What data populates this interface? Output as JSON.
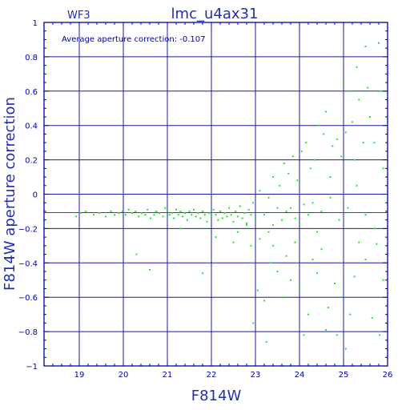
{
  "header": {
    "chip_label": "WF3",
    "title": "lmc_u4ax31"
  },
  "annotation": "Average aperture correction: -0.107",
  "colors": {
    "axis": "#0000a8",
    "grid": "#1a1aa0",
    "points": "#22e622",
    "reference_line": "#b02020",
    "text": "#1f2fb0"
  },
  "chart_data": {
    "type": "scatter",
    "xlabel": "F814W",
    "ylabel": "F814W aperture correction",
    "xlim": [
      18.2,
      26
    ],
    "ylim": [
      -1,
      1
    ],
    "x_ticks": [
      19,
      20,
      21,
      22,
      23,
      24,
      25,
      26
    ],
    "y_ticks": [
      -1,
      -0.8,
      -0.6,
      -0.4,
      -0.2,
      0,
      0.2,
      0.4,
      0.6,
      0.8,
      1
    ],
    "x_tick_labels": [
      "19",
      "20",
      "21",
      "22",
      "23",
      "24",
      "25",
      "26"
    ],
    "y_tick_labels": [
      "−1",
      "−0.8",
      "−0.6",
      "−0.4",
      "−0.2",
      "0",
      "0.2",
      "0.4",
      "0.6",
      "0.8",
      "1"
    ],
    "grid": true,
    "reference_line_y": -0.107,
    "series": [
      {
        "points": [
          [
            18.93,
            -0.13
          ],
          [
            19.02,
            -0.11
          ],
          [
            19.15,
            -0.1
          ],
          [
            19.33,
            -0.12
          ],
          [
            19.45,
            -0.11
          ],
          [
            19.6,
            -0.13
          ],
          [
            19.72,
            -0.1
          ],
          [
            19.8,
            -0.12
          ],
          [
            19.9,
            -0.11
          ],
          [
            19.98,
            -0.1
          ],
          [
            20.05,
            -0.12
          ],
          [
            20.12,
            -0.09
          ],
          [
            20.2,
            -0.11
          ],
          [
            20.28,
            -0.1
          ],
          [
            20.35,
            -0.13
          ],
          [
            20.42,
            -0.11
          ],
          [
            20.5,
            -0.12
          ],
          [
            20.55,
            -0.09
          ],
          [
            20.62,
            -0.14
          ],
          [
            20.7,
            -0.12
          ],
          [
            20.75,
            -0.1
          ],
          [
            20.82,
            -0.11
          ],
          [
            20.9,
            -0.13
          ],
          [
            20.95,
            -0.08
          ],
          [
            21.0,
            -0.1
          ],
          [
            21.05,
            -0.12
          ],
          [
            21.1,
            -0.11
          ],
          [
            21.15,
            -0.14
          ],
          [
            21.2,
            -0.09
          ],
          [
            21.25,
            -0.12
          ],
          [
            21.3,
            -0.1
          ],
          [
            21.35,
            -0.13
          ],
          [
            21.4,
            -0.11
          ],
          [
            21.45,
            -0.15
          ],
          [
            21.5,
            -0.1
          ],
          [
            21.55,
            -0.12
          ],
          [
            21.6,
            -0.09
          ],
          [
            21.65,
            -0.13
          ],
          [
            21.7,
            -0.11
          ],
          [
            21.75,
            -0.14
          ],
          [
            21.8,
            -0.1
          ],
          [
            21.85,
            -0.12
          ],
          [
            21.9,
            -0.16
          ],
          [
            21.95,
            -0.11
          ],
          [
            22.0,
            -0.13
          ],
          [
            22.05,
            -0.09
          ],
          [
            22.1,
            -0.12
          ],
          [
            22.15,
            -0.15
          ],
          [
            22.2,
            -0.1
          ],
          [
            22.25,
            -0.14
          ],
          [
            22.3,
            -0.11
          ],
          [
            22.35,
            -0.13
          ],
          [
            22.4,
            -0.08
          ],
          [
            22.45,
            -0.12
          ],
          [
            22.5,
            -0.16
          ],
          [
            22.55,
            -0.1
          ],
          [
            22.6,
            -0.13
          ],
          [
            22.65,
            -0.07
          ],
          [
            22.7,
            -0.14
          ],
          [
            22.75,
            -0.11
          ],
          [
            22.8,
            -0.17
          ],
          [
            22.85,
            -0.09
          ],
          [
            22.9,
            -0.12
          ],
          [
            22.95,
            -0.05
          ],
          [
            23.0,
            -0.15
          ],
          [
            20.3,
            -0.35
          ],
          [
            20.6,
            -0.44
          ],
          [
            21.3,
            -0.2
          ],
          [
            21.8,
            -0.46
          ],
          [
            22.1,
            -0.25
          ],
          [
            22.5,
            -0.28
          ],
          [
            22.9,
            -0.3
          ],
          [
            22.95,
            -0.75
          ],
          [
            23.25,
            -0.86
          ],
          [
            23.05,
            -0.56
          ],
          [
            23.2,
            -0.62
          ],
          [
            23.35,
            -0.4
          ],
          [
            23.4,
            -0.3
          ],
          [
            23.5,
            -0.45
          ],
          [
            23.6,
            -0.6
          ],
          [
            23.7,
            -0.36
          ],
          [
            23.8,
            -0.5
          ],
          [
            23.9,
            -0.28
          ],
          [
            24.0,
            -0.55
          ],
          [
            24.1,
            -0.82
          ],
          [
            24.2,
            -0.7
          ],
          [
            24.3,
            -0.38
          ],
          [
            24.4,
            -0.46
          ],
          [
            24.5,
            -0.32
          ],
          [
            24.6,
            -0.79
          ],
          [
            24.65,
            -0.66
          ],
          [
            24.8,
            -0.52
          ],
          [
            24.85,
            -0.82
          ],
          [
            24.95,
            -0.6
          ],
          [
            25.05,
            -0.9
          ],
          [
            25.15,
            -0.7
          ],
          [
            25.25,
            -0.48
          ],
          [
            25.35,
            -0.28
          ],
          [
            25.5,
            -0.38
          ],
          [
            25.65,
            -0.72
          ],
          [
            25.75,
            -0.29
          ],
          [
            25.82,
            -0.82
          ],
          [
            25.9,
            -0.5
          ],
          [
            23.1,
            0.02
          ],
          [
            23.3,
            -0.02
          ],
          [
            23.4,
            0.1
          ],
          [
            23.55,
            0.05
          ],
          [
            23.65,
            0.18
          ],
          [
            23.75,
            0.12
          ],
          [
            23.85,
            0.22
          ],
          [
            23.95,
            0.08
          ],
          [
            24.05,
            0.25
          ],
          [
            24.15,
            0.3
          ],
          [
            24.25,
            0.15
          ],
          [
            24.35,
            0.2
          ],
          [
            24.45,
            0.4
          ],
          [
            24.55,
            0.35
          ],
          [
            24.6,
            0.48
          ],
          [
            24.7,
            0.1
          ],
          [
            24.75,
            0.28
          ],
          [
            24.85,
            0.32
          ],
          [
            24.95,
            0.22
          ],
          [
            25.0,
            0.64
          ],
          [
            25.05,
            0.36
          ],
          [
            25.15,
            0.6
          ],
          [
            25.2,
            0.42
          ],
          [
            25.25,
            0.2
          ],
          [
            25.3,
            0.74
          ],
          [
            25.35,
            0.55
          ],
          [
            25.45,
            0.3
          ],
          [
            25.5,
            0.86
          ],
          [
            25.55,
            0.62
          ],
          [
            25.6,
            0.45
          ],
          [
            25.7,
            0.3
          ],
          [
            25.8,
            0.88
          ],
          [
            25.85,
            0.6
          ],
          [
            25.9,
            0.15
          ],
          [
            24.3,
            -0.05
          ],
          [
            24.5,
            -0.1
          ],
          [
            24.7,
            -0.02
          ],
          [
            24.9,
            -0.15
          ],
          [
            25.1,
            -0.08
          ],
          [
            25.3,
            0.05
          ],
          [
            25.5,
            -0.12
          ],
          [
            25.7,
            -0.2
          ],
          [
            23.6,
            -0.15
          ],
          [
            23.8,
            -0.08
          ],
          [
            24.0,
            -0.18
          ],
          [
            24.2,
            -0.12
          ],
          [
            24.4,
            -0.22
          ],
          [
            23.2,
            -0.12
          ],
          [
            23.4,
            -0.18
          ],
          [
            23.7,
            -0.1
          ],
          [
            23.9,
            -0.14
          ],
          [
            24.1,
            -0.06
          ],
          [
            22.6,
            -0.22
          ],
          [
            22.8,
            -0.18
          ],
          [
            23.3,
            -0.22
          ],
          [
            23.5,
            -0.08
          ],
          [
            23.1,
            -0.26
          ]
        ]
      }
    ]
  }
}
